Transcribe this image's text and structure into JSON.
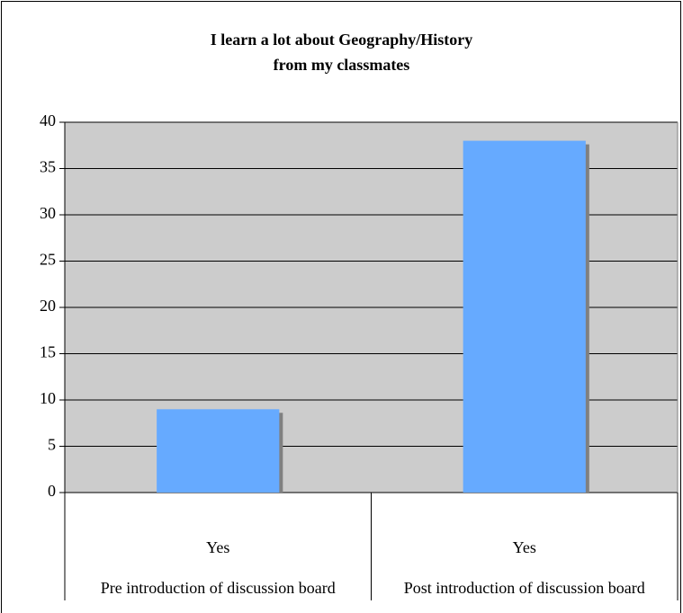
{
  "chart_data": {
    "type": "bar",
    "title": "I learn a lot about Geography/History\nfrom my classmates",
    "categories": [
      "Yes",
      "Yes"
    ],
    "groups": [
      "Pre introduction of discussion board",
      "Post introduction of discussion board"
    ],
    "values": [
      9,
      38
    ],
    "color": "#66aaff",
    "ylim": [
      0,
      40
    ],
    "yticks": [
      0,
      5,
      10,
      15,
      20,
      25,
      30,
      35,
      40
    ],
    "grid": true
  }
}
